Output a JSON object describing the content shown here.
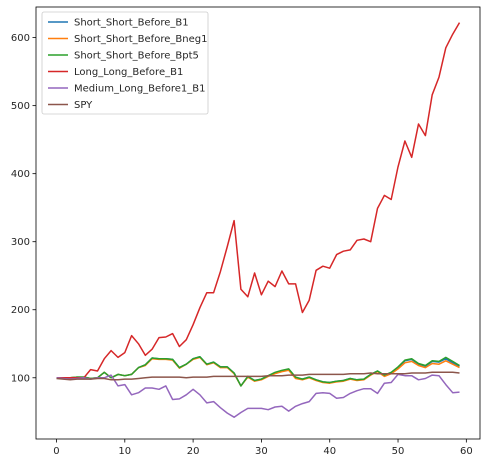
{
  "chart_data": {
    "type": "line",
    "title": "",
    "xlabel": "",
    "ylabel": "",
    "xlim": [
      -3,
      62
    ],
    "ylim": [
      10,
      645
    ],
    "xticks": [
      0,
      10,
      20,
      30,
      40,
      50,
      60
    ],
    "yticks": [
      100,
      200,
      300,
      400,
      500,
      600
    ],
    "xtick_labels": [
      "0",
      "10",
      "20",
      "30",
      "40",
      "50",
      "60"
    ],
    "ytick_labels": [
      "100",
      "200",
      "300",
      "400",
      "500",
      "600"
    ],
    "grid": false,
    "legend_position": "top-left",
    "x": [
      0,
      1,
      2,
      3,
      4,
      5,
      6,
      7,
      8,
      9,
      10,
      11,
      12,
      13,
      14,
      15,
      16,
      17,
      18,
      19,
      20,
      21,
      22,
      23,
      24,
      25,
      26,
      27,
      28,
      29,
      30,
      31,
      32,
      33,
      34,
      35,
      36,
      37,
      38,
      39,
      40,
      41,
      42,
      43,
      44,
      45,
      46,
      47,
      48,
      49,
      50,
      51,
      52,
      53,
      54,
      55,
      56,
      57,
      58,
      59
    ],
    "series": [
      {
        "name": "Short_Short_Before_B1",
        "color": "#1f77b4",
        "values": [
          100,
          100,
          100,
          101,
          101,
          99,
          100,
          108,
          100,
          105,
          103,
          105,
          115,
          119,
          129,
          128,
          128,
          127,
          115,
          120,
          128,
          131,
          120,
          123,
          116,
          116,
          107,
          88,
          102,
          96,
          98,
          103,
          107,
          110,
          112,
          100,
          98,
          101,
          97,
          94,
          93,
          95,
          96,
          99,
          97,
          98,
          105,
          110,
          103,
          107,
          115,
          125,
          127,
          120,
          117,
          124,
          123,
          128,
          122,
          117
        ]
      },
      {
        "name": "Short_Short_Before_Bneg1",
        "color": "#ff7f0e",
        "values": [
          100,
          100,
          100,
          101,
          101,
          99,
          100,
          108,
          100,
          105,
          103,
          105,
          115,
          118,
          128,
          127,
          127,
          126,
          114,
          120,
          127,
          130,
          119,
          122,
          115,
          115,
          106,
          88,
          101,
          95,
          97,
          102,
          106,
          109,
          111,
          99,
          97,
          100,
          96,
          93,
          92,
          94,
          95,
          98,
          96,
          97,
          104,
          109,
          102,
          106,
          113,
          122,
          124,
          118,
          115,
          121,
          120,
          125,
          120,
          115
        ]
      },
      {
        "name": "Short_Short_Before_Bpt5",
        "color": "#2ca02c",
        "values": [
          100,
          100,
          100,
          101,
          101,
          99,
          100,
          108,
          100,
          105,
          103,
          105,
          115,
          119,
          129,
          128,
          128,
          127,
          115,
          120,
          128,
          131,
          120,
          123,
          116,
          116,
          107,
          88,
          102,
          96,
          98,
          103,
          108,
          111,
          113,
          101,
          98,
          101,
          97,
          94,
          93,
          95,
          96,
          99,
          97,
          98,
          105,
          110,
          104,
          108,
          116,
          126,
          128,
          121,
          118,
          125,
          124,
          130,
          124,
          118
        ]
      },
      {
        "name": "Long_Long_Before_B1",
        "color": "#d62728",
        "values": [
          100,
          100,
          100,
          100,
          100,
          112,
          110,
          128,
          140,
          130,
          137,
          162,
          150,
          133,
          142,
          159,
          160,
          165,
          146,
          156,
          178,
          203,
          225,
          225,
          256,
          293,
          331,
          230,
          219,
          254,
          222,
          242,
          234,
          257,
          238,
          238,
          196,
          214,
          258,
          264,
          261,
          281,
          286,
          288,
          302,
          304,
          300,
          349,
          368,
          362,
          410,
          448,
          424,
          473,
          456,
          516,
          542,
          585,
          605,
          622
        ]
      },
      {
        "name": "Medium_Long_Before1_B1",
        "color": "#9467bd",
        "values": [
          100,
          99,
          98,
          99,
          100,
          98,
          100,
          100,
          104,
          88,
          90,
          75,
          78,
          85,
          85,
          83,
          88,
          68,
          69,
          75,
          83,
          75,
          63,
          65,
          56,
          48,
          42,
          49,
          55,
          55,
          55,
          53,
          57,
          58,
          51,
          58,
          62,
          65,
          77,
          78,
          77,
          70,
          71,
          77,
          81,
          84,
          84,
          77,
          92,
          93,
          105,
          103,
          103,
          97,
          99,
          104,
          103,
          90,
          78,
          79
        ]
      },
      {
        "name": "SPY",
        "color": "#8c564b",
        "values": [
          99,
          98,
          97,
          98,
          98,
          98,
          99,
          99,
          97,
          97,
          98,
          98,
          99,
          100,
          101,
          101,
          101,
          101,
          101,
          100,
          101,
          101,
          101,
          102,
          102,
          102,
          102,
          102,
          102,
          102,
          102,
          103,
          103,
          103,
          104,
          104,
          104,
          105,
          105,
          105,
          105,
          105,
          105,
          106,
          106,
          106,
          107,
          106,
          106,
          106,
          106,
          106,
          107,
          107,
          107,
          108,
          108,
          108,
          108,
          107
        ]
      }
    ]
  }
}
